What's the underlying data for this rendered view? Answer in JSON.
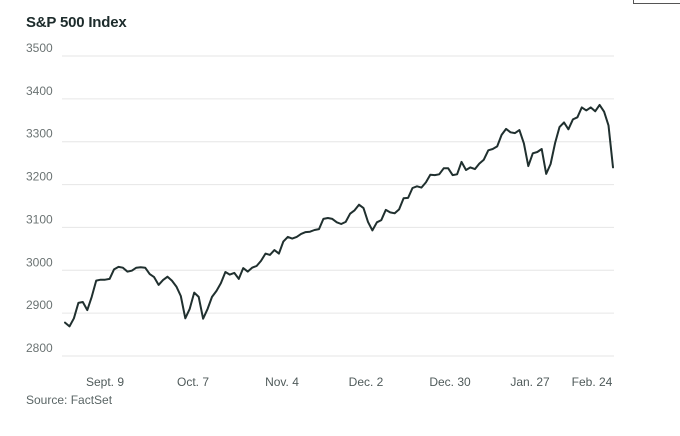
{
  "chart_data": {
    "type": "line",
    "title": "S&P 500 Index",
    "source": "Source: FactSet",
    "ylim": [
      2800,
      3500
    ],
    "y_ticks": [
      "3500",
      "3400",
      "3300",
      "3200",
      "3100",
      "3000",
      "2900",
      "2800"
    ],
    "x_ticks": [
      "Sept. 9",
      "Oct. 7",
      "Nov. 4",
      "Dec. 2",
      "Dec. 30",
      "Jan. 27",
      "Feb. 24"
    ],
    "grid": "horizontal",
    "legend": "none",
    "line_color": "#20302f",
    "series": [
      {
        "values": [
          2878,
          2869,
          2888,
          2924,
          2926,
          2907,
          2938,
          2976,
          2978,
          2978,
          2980,
          3002,
          3008,
          3006,
          2997,
          2999,
          3006,
          3007,
          3006,
          2991,
          2984,
          2966,
          2977,
          2985,
          2976,
          2962,
          2940,
          2888,
          2910,
          2948,
          2938,
          2887,
          2910,
          2938,
          2952,
          2970,
          2996,
          2990,
          2994,
          2980,
          3005,
          2997,
          3006,
          3010,
          3022,
          3039,
          3036,
          3047,
          3039,
          3067,
          3078,
          3074,
          3078,
          3085,
          3089,
          3090,
          3094,
          3096,
          3120,
          3122,
          3120,
          3112,
          3108,
          3113,
          3132,
          3140,
          3153,
          3145,
          3113,
          3093,
          3112,
          3117,
          3141,
          3135,
          3133,
          3142,
          3168,
          3169,
          3192,
          3196,
          3193,
          3205,
          3223,
          3222,
          3224,
          3238,
          3238,
          3222,
          3224,
          3253,
          3234,
          3240,
          3236,
          3249,
          3258,
          3280,
          3283,
          3289,
          3316,
          3330,
          3322,
          3320,
          3327,
          3296,
          3243,
          3273,
          3276,
          3283,
          3225,
          3248,
          3297,
          3334,
          3345,
          3329,
          3352,
          3357,
          3380,
          3373,
          3380,
          3371,
          3386,
          3370,
          3338,
          3240
        ]
      }
    ]
  }
}
